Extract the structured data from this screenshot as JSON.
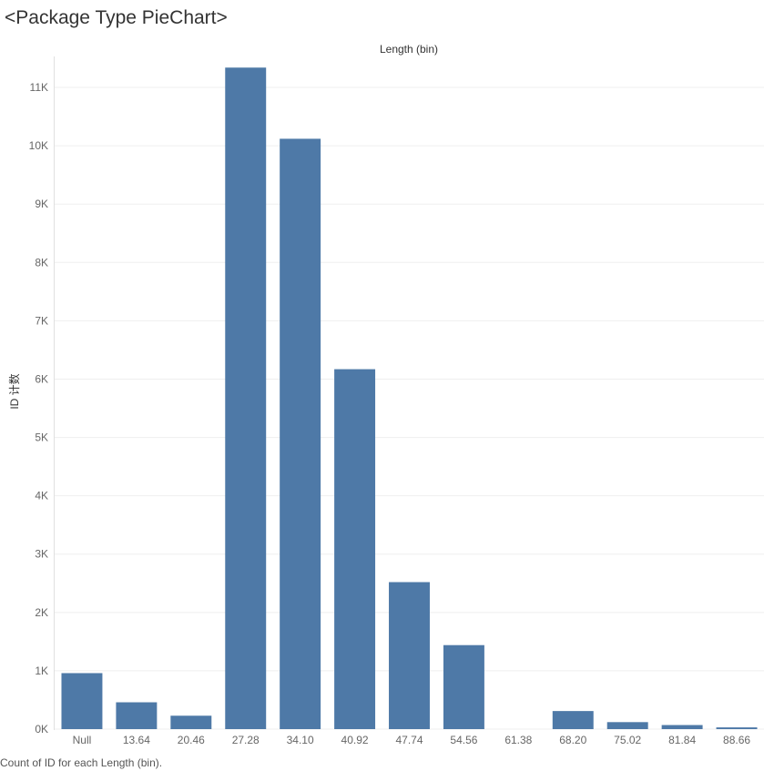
{
  "title": "<Package Type PieChart>",
  "footnote": "Count of ID for each Length (bin).",
  "colors": {
    "bar": "#4e79a7",
    "grid": "#efefef",
    "text": "#666666"
  },
  "chart_data": {
    "type": "bar",
    "title": "<Package Type PieChart>",
    "xlabel": "Length (bin)",
    "xlabel_position": "top",
    "ylabel": "ID 计数",
    "categories": [
      "Null",
      "13.64",
      "20.46",
      "27.28",
      "34.10",
      "40.92",
      "47.74",
      "54.56",
      "61.38",
      "68.20",
      "75.02",
      "81.84",
      "88.66"
    ],
    "values": [
      960,
      460,
      230,
      11340,
      10120,
      6170,
      2520,
      1440,
      0,
      310,
      120,
      70,
      30
    ],
    "ylim": [
      0,
      11500
    ],
    "yticks": [
      0,
      1000,
      2000,
      3000,
      4000,
      5000,
      6000,
      7000,
      8000,
      9000,
      10000,
      11000
    ],
    "ytick_labels": [
      "0K",
      "1K",
      "2K",
      "3K",
      "4K",
      "5K",
      "6K",
      "7K",
      "8K",
      "9K",
      "10K",
      "11K"
    ],
    "grid": true,
    "legend": "none"
  }
}
